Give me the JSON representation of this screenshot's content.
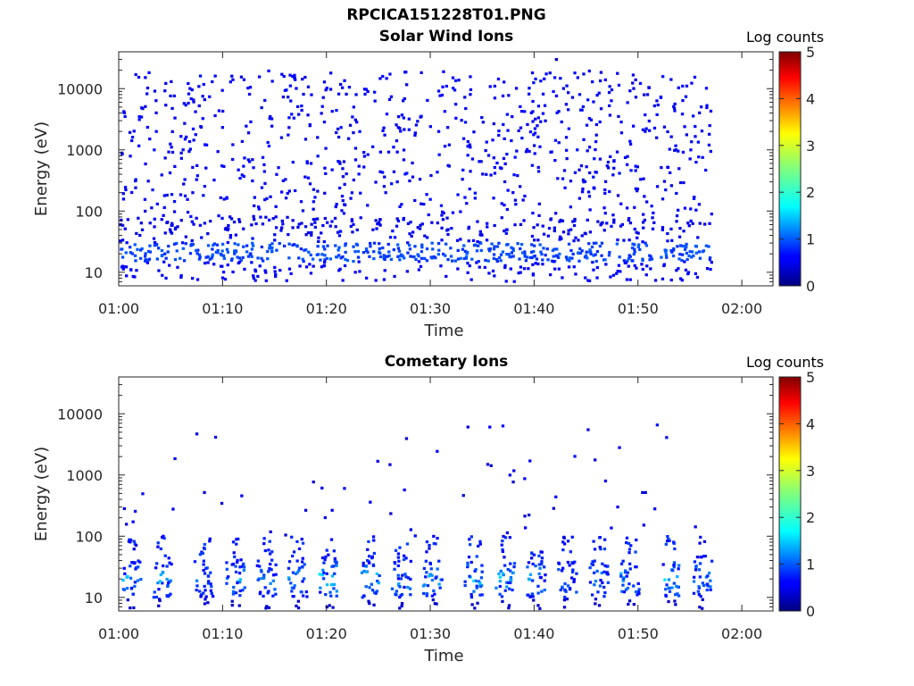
{
  "figure_title": "RPCICA151228T01.PNG",
  "chart_data": [
    {
      "type": "heatmap",
      "title": "Solar Wind Ions",
      "xlabel": "Time",
      "ylabel": "Energy (eV)",
      "x_ticks": [
        "01:00",
        "01:10",
        "01:20",
        "01:30",
        "01:40",
        "01:50",
        "02:00"
      ],
      "xlim": [
        "01:00",
        "02:03"
      ],
      "y_scale": "log",
      "y_ticks": [
        "10",
        "100",
        "1000",
        "10000"
      ],
      "ylim": [
        6,
        40000
      ],
      "data_end": "01:57",
      "colorbar": {
        "label": "Log counts",
        "range": [
          0,
          5
        ],
        "ticks": [
          "0",
          "1",
          "2",
          "3",
          "4",
          "5"
        ],
        "colormap": "jet"
      },
      "description_data": {
        "sparse_counts_energy_range": [
          30,
          20000
        ],
        "low_energy_band_eV": [
          15,
          30
        ],
        "typical_log_counts": 0.5,
        "low_band_log_counts": 0.8,
        "max_point": {
          "time": "01:42",
          "energy": 30000,
          "log_counts": 0.3
        }
      }
    },
    {
      "type": "heatmap",
      "title": "Cometary Ions",
      "xlabel": "Time",
      "ylabel": "Energy (eV)",
      "x_ticks": [
        "01:00",
        "01:10",
        "01:20",
        "01:30",
        "01:40",
        "01:50",
        "02:00"
      ],
      "xlim": [
        "01:00",
        "02:03"
      ],
      "y_scale": "log",
      "y_ticks": [
        "10",
        "100",
        "1000",
        "10000"
      ],
      "ylim": [
        6,
        40000
      ],
      "data_end": "01:56",
      "colorbar": {
        "label": "Log counts",
        "range": [
          0,
          5
        ],
        "ticks": [
          "0",
          "1",
          "2",
          "3",
          "4",
          "5"
        ],
        "colormap": "jet"
      },
      "bursts": [
        {
          "time": "01:01",
          "peak_log_counts": 1.8
        },
        {
          "time": "01:04",
          "peak_log_counts": 1.8
        },
        {
          "time": "01:08",
          "peak_log_counts": 1.3
        },
        {
          "time": "01:11",
          "peak_log_counts": 1.8
        },
        {
          "time": "01:14",
          "peak_log_counts": 1.5
        },
        {
          "time": "01:17",
          "peak_log_counts": 1.6
        },
        {
          "time": "01:20",
          "peak_log_counts": 2.2
        },
        {
          "time": "01:24",
          "peak_log_counts": 1.9
        },
        {
          "time": "01:27",
          "peak_log_counts": 1.7
        },
        {
          "time": "01:30",
          "peak_log_counts": 1.7
        },
        {
          "time": "01:34",
          "peak_log_counts": 1.9
        },
        {
          "time": "01:37",
          "peak_log_counts": 1.8
        },
        {
          "time": "01:40",
          "peak_log_counts": 1.7
        },
        {
          "time": "01:43",
          "peak_log_counts": 1.6
        },
        {
          "time": "01:46",
          "peak_log_counts": 1.5
        },
        {
          "time": "01:49",
          "peak_log_counts": 1.8
        },
        {
          "time": "01:53",
          "peak_log_counts": 2.0
        },
        {
          "time": "01:56",
          "peak_log_counts": 1.9
        }
      ],
      "burst_energy_range_eV": [
        10,
        40
      ]
    }
  ]
}
